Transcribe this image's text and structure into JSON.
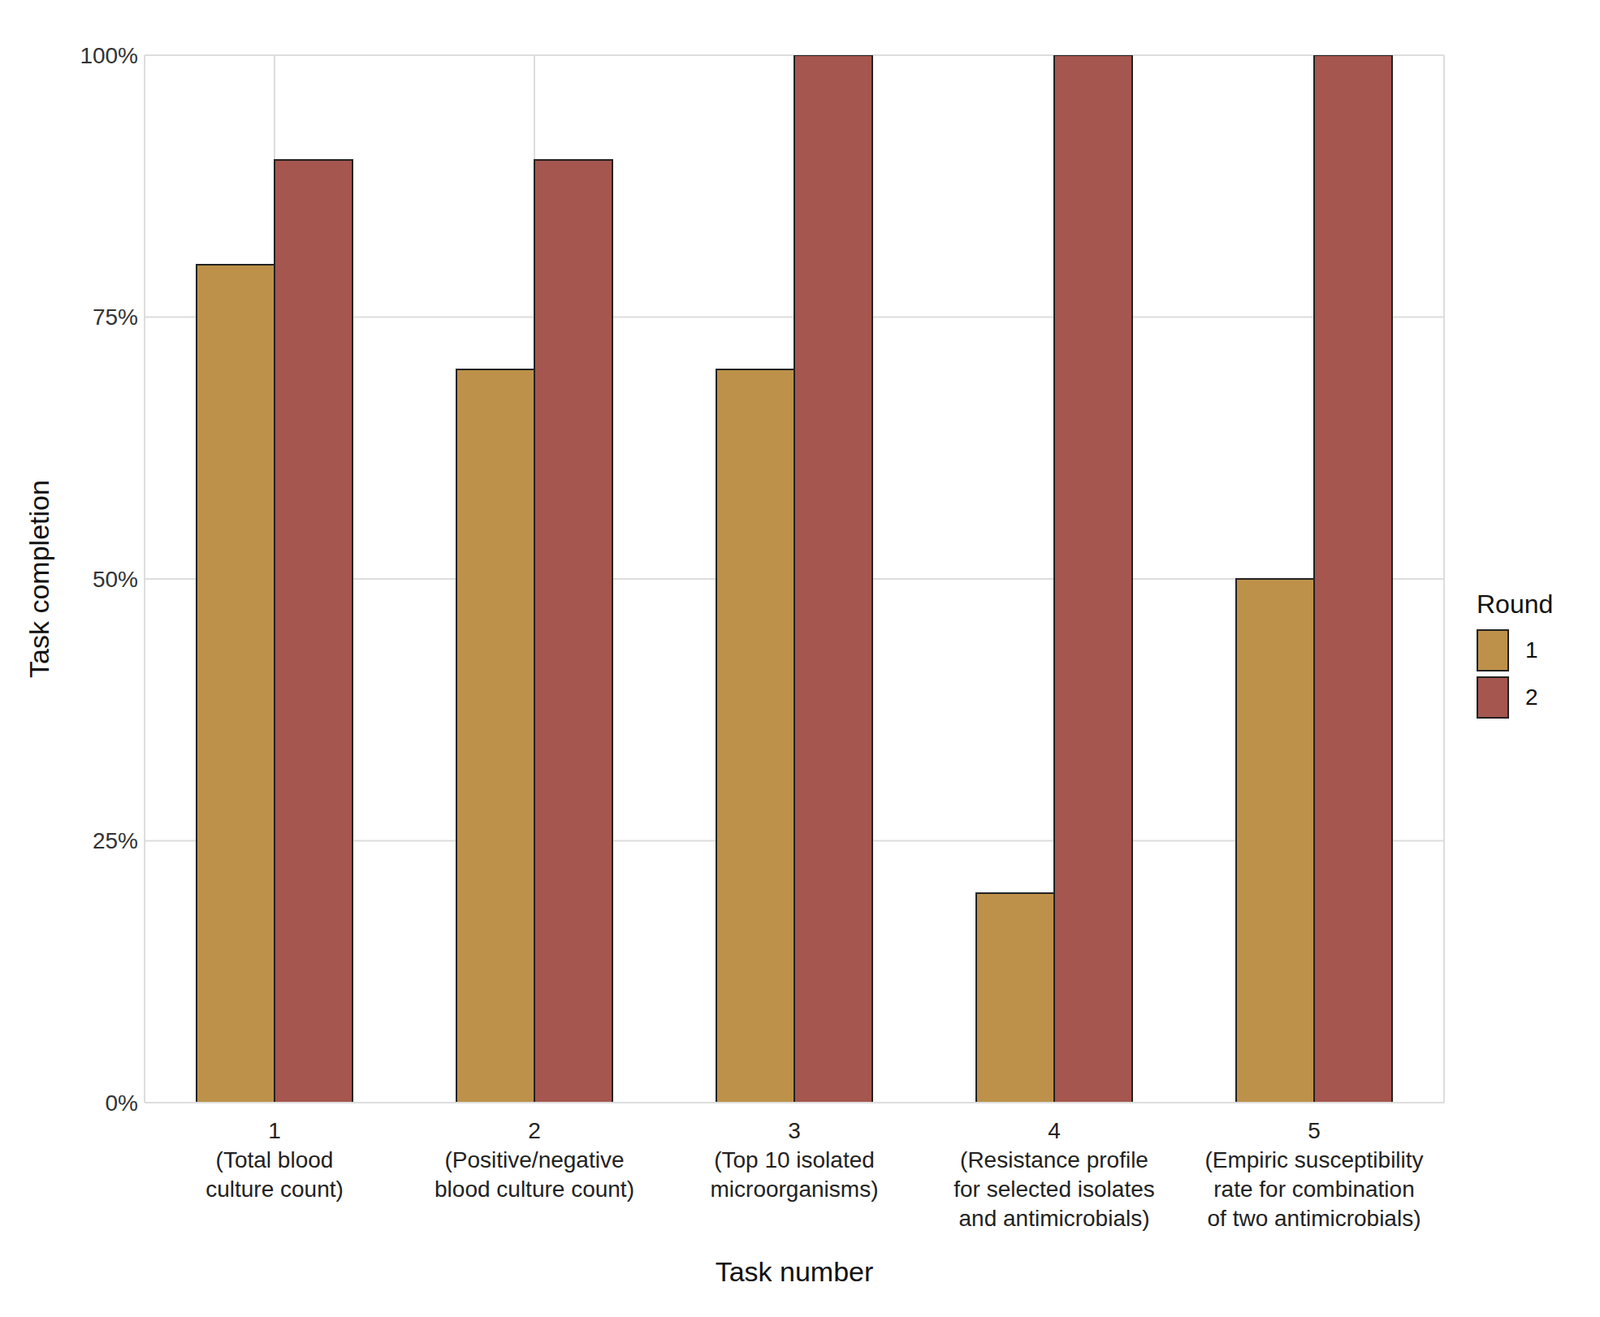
{
  "chart_data": {
    "type": "bar",
    "x_label": "Task number",
    "y_label": "Task completion",
    "legend_title": "Round",
    "categories": [
      "1\n(Total blood\nculture count)",
      "2\n(Positive/negative\nblood culture count)",
      "3\n(Top 10 isolated\nmicroorganisms)",
      "4\n(Resistance profile\nfor selected isolates\nand antimicrobials)",
      "5\n(Empiric susceptibility\nrate for combination\nof two antimicrobials)"
    ],
    "series": [
      {
        "name": "1",
        "color": "#bd9149",
        "values": [
          80,
          70,
          70,
          20,
          50
        ]
      },
      {
        "name": "2",
        "color": "#a5564e",
        "values": [
          90,
          90,
          100,
          100,
          100
        ]
      }
    ],
    "ylim": [
      0,
      100
    ],
    "yticks": [
      {
        "value": 0,
        "label": "0%"
      },
      {
        "value": 25,
        "label": "25%"
      },
      {
        "value": 50,
        "label": "50%"
      },
      {
        "value": 75,
        "label": "75%"
      },
      {
        "value": 100,
        "label": "100%"
      }
    ],
    "grid": true,
    "legend": "right"
  }
}
